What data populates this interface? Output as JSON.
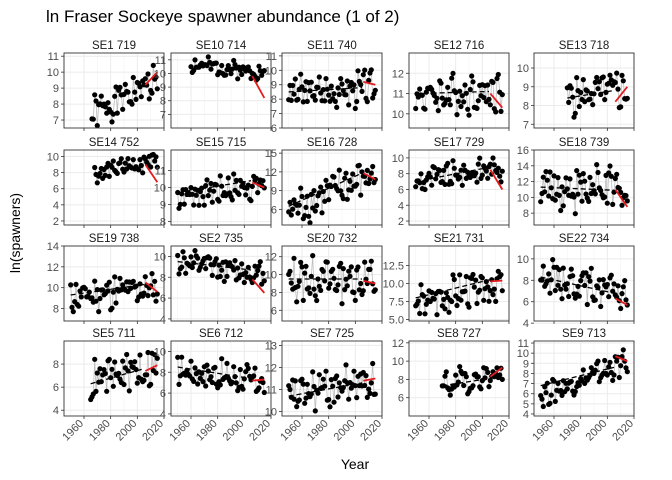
{
  "chart_data": {
    "type": "scatter",
    "title": "ln Fraser Sockeye spawner abundance (1 of 2)",
    "xlabel": "Year",
    "ylabel": "ln(spawners)",
    "xlim": [
      1945,
      2020
    ],
    "xticks": [
      1960,
      1980,
      2000,
      2020
    ],
    "xtick_labels": [
      "1960",
      "1980",
      "2000",
      "2020"
    ],
    "grid": true,
    "colors": {
      "points": "#000000",
      "line": "#bdbdbd",
      "trend": "#000000",
      "recent_trend": "#e41a1c",
      "grid": "#ebebeb",
      "border": "#333333"
    },
    "panels": [
      {
        "label": "SE1 719",
        "ylim": [
          6.5,
          11.2
        ],
        "yticks": [
          7,
          8,
          9,
          10,
          11
        ],
        "start": 1966,
        "end": 2015,
        "mean": 8.2,
        "slope": 0.045,
        "amp": 0.9,
        "seed": 1,
        "trend": [
          2006,
          2015,
          9.2,
          10.0
        ]
      },
      {
        "label": "SE10 714",
        "ylim": [
          6.0,
          11.5
        ],
        "yticks": [
          7,
          8,
          9,
          10,
          11
        ],
        "start": 1960,
        "end": 2015,
        "mean": 10.4,
        "slope": -0.01,
        "amp": 0.5,
        "seed": 2,
        "trend": [
          2006,
          2015,
          9.8,
          8.2
        ]
      },
      {
        "label": "SE11 740",
        "ylim": [
          6.0,
          11.2
        ],
        "yticks": [
          6,
          7,
          8,
          9,
          10,
          11
        ],
        "start": 1950,
        "end": 2015,
        "mean": 8.6,
        "slope": 0.005,
        "amp": 1.0,
        "seed": 3,
        "dash": [
          1950,
          2005,
          8.5,
          8.8
        ],
        "trend": [
          2006,
          2015,
          9.2,
          9.0
        ]
      },
      {
        "label": "SE12 716",
        "ylim": [
          9.3,
          13.0
        ],
        "yticks": [
          10,
          11,
          12
        ],
        "start": 1950,
        "end": 2015,
        "mean": 11.0,
        "slope": 0.003,
        "amp": 0.8,
        "seed": 4,
        "dash": [
          1950,
          2005,
          11.0,
          11.1
        ],
        "trend": [
          2006,
          2015,
          11.0,
          10.3
        ]
      },
      {
        "label": "SE13 718",
        "ylim": [
          6.8,
          10.8
        ],
        "yticks": [
          7,
          8,
          9,
          10
        ],
        "start": 1970,
        "end": 2015,
        "mean": 8.6,
        "slope": 0.01,
        "amp": 0.9,
        "seed": 5,
        "dash": [
          1970,
          2005,
          8.4,
          8.8
        ],
        "trend": [
          2006,
          2015,
          8.2,
          9.0
        ]
      },
      {
        "label": "SE14 752",
        "ylim": [
          1.5,
          10.8
        ],
        "yticks": [
          2,
          4,
          6,
          8,
          10
        ],
        "start": 1968,
        "end": 2015,
        "mean": 8.5,
        "slope": 0.04,
        "amp": 1.0,
        "seed": 6,
        "trend": [
          2006,
          2015,
          9.0,
          6.8
        ]
      },
      {
        "label": "SE15 715",
        "ylim": [
          7.8,
          12.2
        ],
        "yticks": [
          8,
          9,
          10,
          11
        ],
        "start": 1950,
        "end": 2015,
        "mean": 9.9,
        "slope": 0.01,
        "amp": 0.7,
        "seed": 7,
        "dash": [
          1950,
          2005,
          9.7,
          10.4
        ],
        "trend": [
          2006,
          2015,
          10.3,
          10.0
        ]
      },
      {
        "label": "SE16 728",
        "ylim": [
          3.5,
          15.5
        ],
        "yticks": [
          6,
          9,
          12,
          15
        ],
        "start": 1950,
        "end": 2015,
        "mean": 9.0,
        "slope": 0.09,
        "amp": 2.5,
        "seed": 8,
        "dash": [
          1950,
          2005,
          6.5,
          11.8
        ],
        "trend": [
          2006,
          2015,
          11.8,
          10.8
        ]
      },
      {
        "label": "SE17 729",
        "ylim": [
          1.5,
          11.0
        ],
        "yticks": [
          2,
          4,
          6,
          8,
          10
        ],
        "start": 1950,
        "end": 2015,
        "mean": 8.0,
        "slope": 0.03,
        "amp": 1.4,
        "seed": 9,
        "dash": [
          1950,
          2005,
          7.0,
          8.8
        ],
        "trend": [
          2006,
          2015,
          8.5,
          6.0
        ]
      },
      {
        "label": "SE18 739",
        "ylim": [
          6.5,
          16.0
        ],
        "yticks": [
          8,
          10,
          12,
          14,
          16
        ],
        "start": 1950,
        "end": 2015,
        "mean": 11.0,
        "slope": -0.01,
        "amp": 2.5,
        "seed": 10,
        "dash": [
          1950,
          2005,
          11.3,
          10.9
        ],
        "trend": [
          2006,
          2015,
          11.0,
          8.8
        ]
      },
      {
        "label": "SE19 738",
        "ylim": [
          6.8,
          14.0
        ],
        "yticks": [
          8,
          10,
          12,
          14
        ],
        "start": 1950,
        "end": 2015,
        "mean": 9.6,
        "slope": 0.015,
        "amp": 1.3,
        "seed": 11,
        "dash": [
          1950,
          2005,
          9.3,
          10.3
        ],
        "trend": [
          2006,
          2015,
          10.5,
          9.6
        ]
      },
      {
        "label": "SE2 735",
        "ylim": [
          3.8,
          11.0
        ],
        "yticks": [
          4,
          6,
          8,
          10
        ],
        "start": 1950,
        "end": 2015,
        "mean": 8.8,
        "slope": -0.02,
        "amp": 1.0,
        "seed": 12,
        "dash": [
          1950,
          2005,
          9.5,
          8.7
        ],
        "trend": [
          2006,
          2015,
          7.8,
          6.5
        ]
      },
      {
        "label": "SE20 732",
        "ylim": [
          4.8,
          13.2
        ],
        "yticks": [
          6,
          8,
          10,
          12
        ],
        "start": 1950,
        "end": 2015,
        "mean": 9.5,
        "slope": 0.0,
        "amp": 2.0,
        "seed": 13,
        "dash": [
          1950,
          2005,
          9.5,
          9.5
        ],
        "trend": [
          2006,
          2015,
          9.3,
          9.0
        ]
      },
      {
        "label": "SE21 731",
        "ylim": [
          4.8,
          15.2
        ],
        "yticks": [
          5.0,
          7.5,
          10.0,
          12.5
        ],
        "ytick_labels": [
          "5.0",
          "7.5",
          "10.0",
          "12.5"
        ],
        "start": 1950,
        "end": 2015,
        "mean": 8.8,
        "slope": 0.05,
        "amp": 2.0,
        "seed": 14,
        "dash": [
          1950,
          2005,
          8.0,
          10.5
        ],
        "trend": [
          2006,
          2015,
          10.3,
          10.4
        ]
      },
      {
        "label": "SE22 734",
        "ylim": [
          4.2,
          11.2
        ],
        "yticks": [
          4,
          6,
          8,
          10
        ],
        "start": 1950,
        "end": 2015,
        "mean": 7.5,
        "slope": -0.03,
        "amp": 1.3,
        "seed": 15,
        "dash": [
          1950,
          2005,
          8.3,
          6.8
        ],
        "trend": [
          2006,
          2015,
          6.3,
          5.7
        ]
      },
      {
        "label": "SE5 711",
        "ylim": [
          3.5,
          10.0
        ],
        "yticks": [
          4,
          6,
          8
        ],
        "start": 1965,
        "end": 2015,
        "mean": 7.0,
        "slope": 0.03,
        "amp": 1.5,
        "seed": 16,
        "dash": [
          1965,
          2005,
          6.3,
          7.6
        ],
        "trend": [
          2006,
          2015,
          7.4,
          7.9
        ]
      },
      {
        "label": "SE6 712",
        "ylim": [
          3.8,
          11.0
        ],
        "yticks": [
          4,
          6,
          8,
          10
        ],
        "start": 1950,
        "end": 2015,
        "mean": 7.6,
        "slope": -0.02,
        "amp": 1.2,
        "seed": 17,
        "dash": [
          1950,
          2005,
          8.5,
          7.4
        ],
        "trend": [
          2006,
          2015,
          7.2,
          7.3
        ]
      },
      {
        "label": "SE7 725",
        "ylim": [
          9.8,
          13.2
        ],
        "yticks": [
          10,
          11,
          12,
          13
        ],
        "start": 1950,
        "end": 2015,
        "mean": 11.1,
        "slope": 0.012,
        "amp": 0.8,
        "seed": 18,
        "dash": [
          1950,
          2005,
          10.7,
          11.3
        ],
        "trend": [
          2006,
          2015,
          11.4,
          11.5
        ]
      },
      {
        "label": "SE8 727",
        "ylim": [
          4.0,
          12.2
        ],
        "yticks": [
          6,
          8,
          10,
          12
        ],
        "start": 1970,
        "end": 2015,
        "mean": 7.8,
        "slope": 0.03,
        "amp": 1.4,
        "seed": 19,
        "dash": [
          1970,
          2005,
          7.3,
          8.1
        ],
        "trend": [
          2006,
          2015,
          8.3,
          9.3
        ]
      },
      {
        "label": "SE9 713",
        "ylim": [
          3.8,
          11.2
        ],
        "yticks": [
          4,
          5,
          6,
          7,
          8,
          9,
          10,
          11
        ],
        "start": 1950,
        "end": 2015,
        "mean": 7.6,
        "slope": 0.05,
        "amp": 1.0,
        "seed": 20,
        "dash": [
          1950,
          2005,
          6.8,
          8.6
        ],
        "trend": [
          2006,
          2015,
          9.7,
          9.2
        ]
      }
    ]
  }
}
